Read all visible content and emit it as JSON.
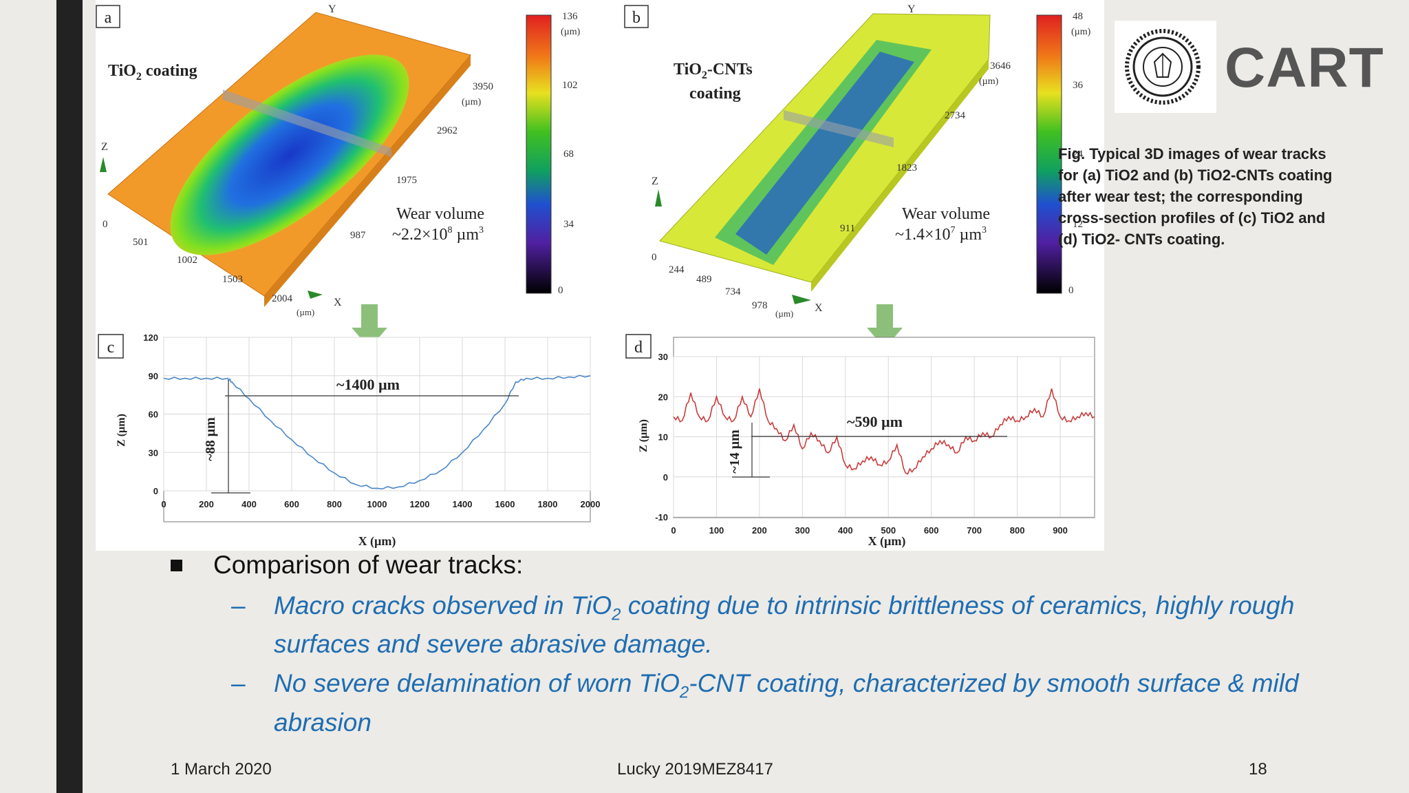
{
  "figure": {
    "panel_a": {
      "tag": "a",
      "title_pre": "TiO",
      "title_sub": "2",
      "title_post": " coating",
      "axis_y": "Y",
      "axis_z": "Z",
      "axis_x": "X",
      "y_ticks": [
        "3950",
        "(µm)",
        "2962",
        "1975",
        "987"
      ],
      "x_ticks": [
        "501",
        "1002",
        "1503",
        "2004"
      ],
      "x_unit": "(µm)",
      "zero": "0",
      "wear_label": "Wear volume",
      "wear_value_pre": "~2.2×10",
      "wear_value_exp": "8",
      "wear_value_unit": " µm",
      "wear_value_unit_exp": "3",
      "colorbar_ticks": [
        "136",
        "(µm)",
        "102",
        "68",
        "34",
        "0"
      ]
    },
    "panel_b": {
      "tag": "b",
      "title_l1_pre": "TiO",
      "title_l1_sub": "2",
      "title_l1_post": "-CNTs",
      "title_l2": "coating",
      "axis_y": "Y",
      "axis_z": "Z",
      "axis_x": "X",
      "y_ticks": [
        "3646",
        "(µm)",
        "2734",
        "1823",
        "911"
      ],
      "x_ticks": [
        "244",
        "489",
        "734",
        "978"
      ],
      "x_unit": "(µm)",
      "zero": "0",
      "wear_label": "Wear volume",
      "wear_value_pre": "~1.4×10",
      "wear_value_exp": "7",
      "wear_value_unit": " µm",
      "wear_value_unit_exp": "3",
      "colorbar_ticks": [
        "48",
        "(µm)",
        "36",
        "24",
        "12",
        "0"
      ]
    },
    "panel_c": {
      "tag": "c",
      "ylabel": "Z (µm)",
      "xlabel": "X (µm)",
      "yticks": [
        "120",
        "90",
        "60",
        "30",
        "0"
      ],
      "xticks": [
        "0",
        "200",
        "400",
        "600",
        "800",
        "1000",
        "1200",
        "1400",
        "1600",
        "1800",
        "2000"
      ],
      "width_label": "~1400 µm",
      "depth_label": "~88 µm"
    },
    "panel_d": {
      "tag": "d",
      "ylabel": "Z (µm)",
      "xlabel": "X (µm)",
      "yticks": [
        "30",
        "20",
        "10",
        "0",
        "-10"
      ],
      "xticks": [
        "0",
        "100",
        "200",
        "300",
        "400",
        "500",
        "600",
        "700",
        "800",
        "900"
      ],
      "width_label": "~590 µm",
      "depth_label": "~14 µm"
    }
  },
  "chart_data": [
    {
      "type": "line",
      "title": "",
      "xlabel": "X (µm)",
      "ylabel": "Z (µm)",
      "xlim": [
        0,
        2000
      ],
      "ylim": [
        0,
        120
      ],
      "grid": true,
      "series": [
        {
          "x": [
            0,
            100,
            200,
            300,
            320,
            400,
            500,
            600,
            700,
            800,
            900,
            1000,
            1100,
            1200,
            1300,
            1400,
            1500,
            1600,
            1650,
            1700,
            1800,
            1900,
            2000
          ],
          "values": [
            88,
            88,
            88,
            88,
            85,
            72,
            55,
            40,
            26,
            14,
            5,
            2,
            3,
            8,
            16,
            30,
            48,
            68,
            85,
            88,
            88,
            89,
            90
          ]
        }
      ],
      "annotations": [
        "~1400 µm",
        "~88 µm"
      ]
    },
    {
      "type": "line",
      "title": "",
      "xlabel": "X (µm)",
      "ylabel": "Z (µm)",
      "xlim": [
        0,
        980
      ],
      "ylim": [
        -10,
        30
      ],
      "grid": true,
      "series": [
        {
          "x": [
            0,
            20,
            40,
            60,
            80,
            100,
            120,
            140,
            160,
            180,
            200,
            220,
            240,
            260,
            280,
            300,
            320,
            340,
            360,
            380,
            400,
            420,
            440,
            460,
            480,
            500,
            520,
            540,
            560,
            580,
            600,
            620,
            640,
            660,
            680,
            700,
            720,
            740,
            760,
            780,
            800,
            820,
            840,
            860,
            880,
            900,
            920,
            940,
            960,
            980
          ],
          "values": [
            15,
            14,
            21,
            15,
            14,
            20,
            15,
            14,
            20,
            15,
            22,
            14,
            12,
            9,
            13,
            7,
            11,
            9,
            6,
            10,
            3,
            2,
            4,
            5,
            3,
            4,
            8,
            1,
            2,
            5,
            7,
            9,
            8,
            6,
            10,
            9,
            11,
            10,
            13,
            15,
            14,
            15,
            17,
            15,
            22,
            15,
            14,
            15,
            16,
            15
          ]
        }
      ],
      "annotations": [
        "~590 µm",
        "~14 µm"
      ]
    }
  ],
  "logo_text": "CART",
  "caption": "Fig. Typical 3D images of wear tracks for (a) TiO2 and (b) TiO2-CNTs coating after wear test; the corresponding cross-section profiles of (c) TiO2 and (d) TiO2- CNTs coating.",
  "section": {
    "heading": "Comparison of wear tracks",
    "heading_colon": ":",
    "points": [
      {
        "pre": "Macro cracks observed in TiO",
        "sub": "2",
        "post": " coating due to intrinsic brittleness of ceramics, highly rough surfaces and severe abrasive damage."
      },
      {
        "pre": "No severe delamination of worn TiO",
        "sub": "2",
        "post": "-CNT coating, characterized by smooth surface & mild abrasion"
      }
    ],
    "dash": "–"
  },
  "footer": {
    "date": "1 March 2020",
    "author": "Lucky 2019MEZ8417",
    "page": "18"
  },
  "colors": {
    "profile_c": "#4a86c8",
    "profile_d": "#c83c3c",
    "body_text_blue": "#1f6db1",
    "arrow_green": "#8cc07a",
    "sidebar_dark": "#222222"
  }
}
